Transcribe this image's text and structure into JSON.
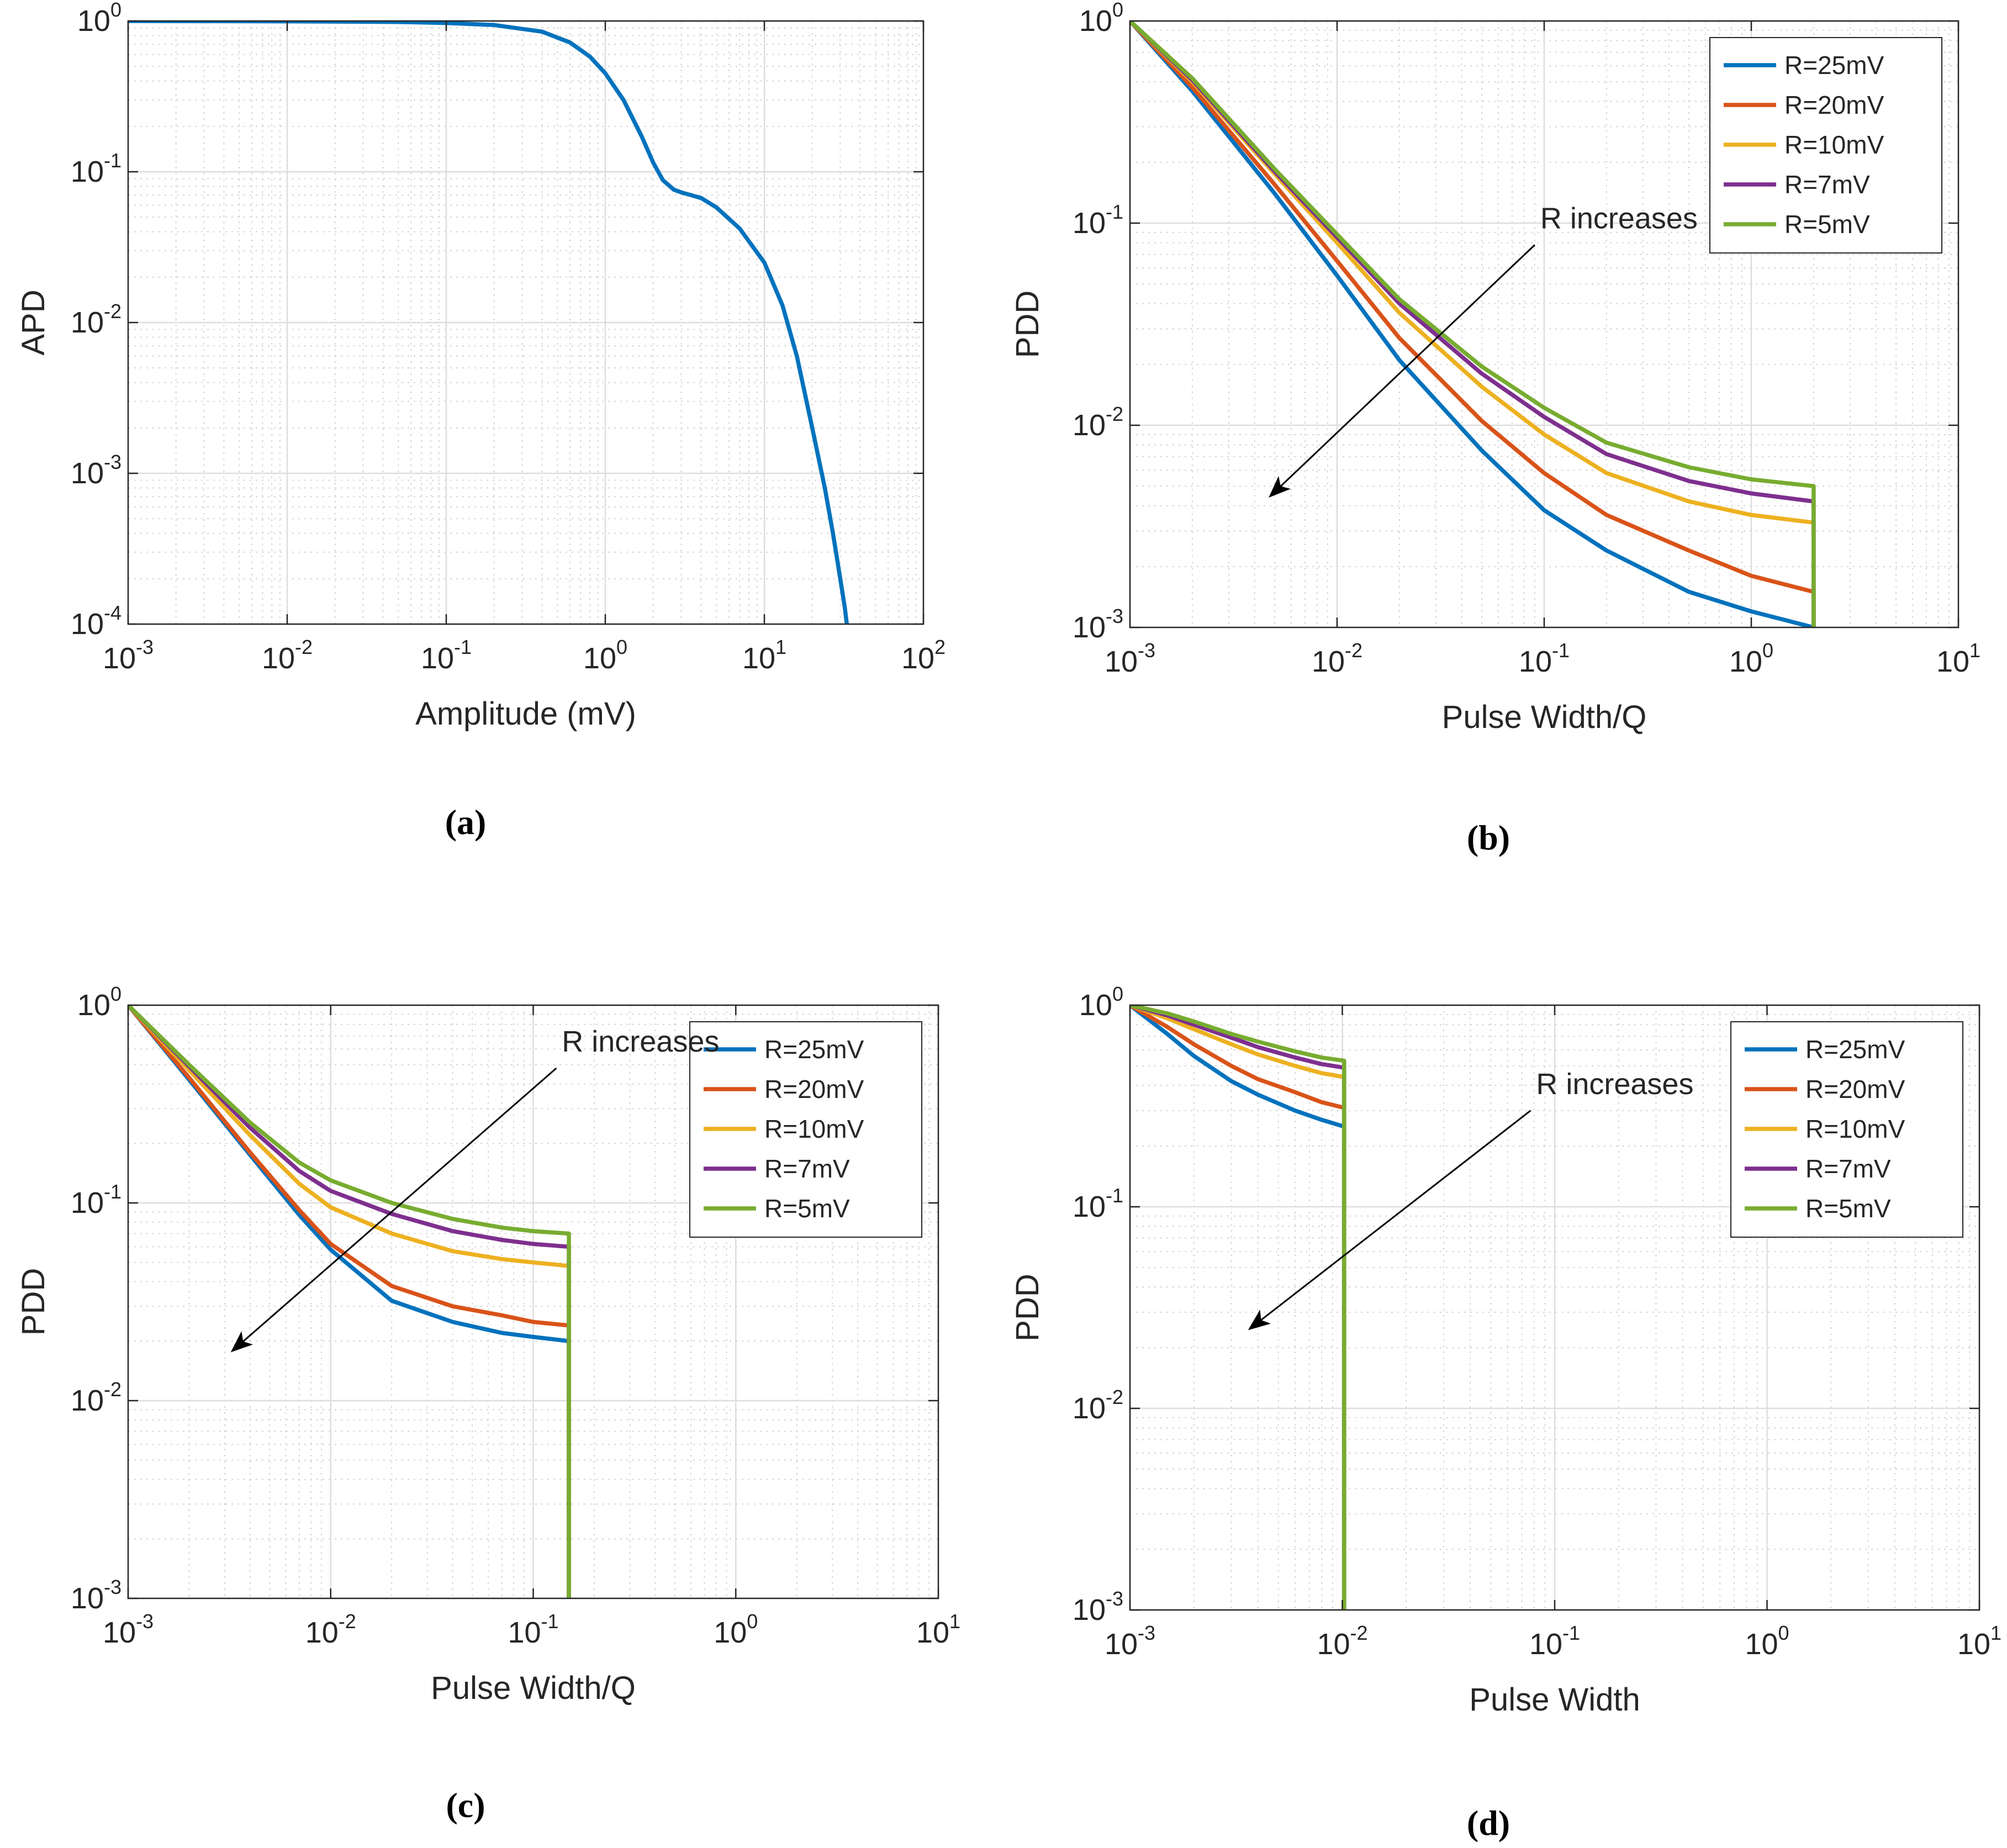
{
  "chart_data": [
    {
      "id": "a",
      "caption": "(a)",
      "type": "line",
      "scale": {
        "x": "log",
        "y": "log"
      },
      "xlabel": "Amplitude (mV)",
      "ylabel": "APD",
      "xlim": [
        0.001,
        100
      ],
      "ylim": [
        0.0001,
        1
      ],
      "xticks": [
        {
          "base": "10",
          "exp": "-3"
        },
        {
          "base": "10",
          "exp": "-2"
        },
        {
          "base": "10",
          "exp": "-1"
        },
        {
          "base": "10",
          "exp": "0"
        },
        {
          "base": "10",
          "exp": "1"
        },
        {
          "base": "10",
          "exp": "2"
        }
      ],
      "yticks": [
        {
          "base": "10",
          "exp": "-4"
        },
        {
          "base": "10",
          "exp": "-3"
        },
        {
          "base": "10",
          "exp": "-2"
        },
        {
          "base": "10",
          "exp": "-1"
        },
        {
          "base": "10",
          "exp": "0"
        }
      ],
      "grid": true,
      "series": [
        {
          "name": "APD",
          "color": "#0072BD",
          "x": [
            0.001,
            0.01,
            0.05,
            0.1,
            0.2,
            0.4,
            0.6,
            0.8,
            1,
            1.3,
            1.7,
            2,
            2.3,
            2.7,
            3,
            4,
            5,
            7,
            10,
            13,
            16,
            20,
            24,
            27,
            30,
            32,
            33
          ],
          "y": [
            1.0,
            0.995,
            0.985,
            0.97,
            0.94,
            0.85,
            0.72,
            0.58,
            0.45,
            0.3,
            0.17,
            0.115,
            0.088,
            0.076,
            0.073,
            0.067,
            0.058,
            0.042,
            0.025,
            0.013,
            0.006,
            0.002,
            0.0008,
            0.0004,
            0.0002,
            0.00013,
            0.0001
          ]
        }
      ]
    },
    {
      "id": "b",
      "caption": "(b)",
      "type": "line",
      "scale": {
        "x": "log",
        "y": "log"
      },
      "xlabel": "Pulse Width/Q",
      "ylabel": "PDD",
      "xlim": [
        0.001,
        10
      ],
      "ylim": [
        0.001,
        1
      ],
      "xticks": [
        {
          "base": "10",
          "exp": "-3"
        },
        {
          "base": "10",
          "exp": "-2"
        },
        {
          "base": "10",
          "exp": "-1"
        },
        {
          "base": "10",
          "exp": "0"
        },
        {
          "base": "10",
          "exp": "1"
        }
      ],
      "yticks": [
        {
          "base": "10",
          "exp": "-3"
        },
        {
          "base": "10",
          "exp": "-2"
        },
        {
          "base": "10",
          "exp": "-1"
        },
        {
          "base": "10",
          "exp": "0"
        }
      ],
      "grid": true,
      "legend": {
        "position": "top-right"
      },
      "annotation": {
        "text": "R increases",
        "arrow_from": [
          0.09,
          0.078
        ],
        "arrow_to": [
          0.0048,
          0.0045
        ]
      },
      "series": [
        {
          "name": "R=25mV",
          "color": "#0072BD",
          "x": [
            0.001,
            0.002,
            0.005,
            0.01,
            0.02,
            0.05,
            0.1,
            0.2,
            0.5,
            1,
            2,
            2
          ],
          "y": [
            1,
            0.45,
            0.14,
            0.055,
            0.021,
            0.0075,
            0.0038,
            0.0024,
            0.0015,
            0.0012,
            0.001,
            0.001
          ]
        },
        {
          "name": "R=20mV",
          "color": "#D95319",
          "x": [
            0.001,
            0.002,
            0.005,
            0.01,
            0.02,
            0.05,
            0.1,
            0.2,
            0.5,
            1,
            2,
            2
          ],
          "y": [
            1,
            0.47,
            0.155,
            0.065,
            0.027,
            0.0105,
            0.0058,
            0.0036,
            0.0024,
            0.0018,
            0.0015,
            0.001
          ]
        },
        {
          "name": "R=10mV",
          "color": "#EDB120",
          "x": [
            0.001,
            0.002,
            0.005,
            0.01,
            0.02,
            0.05,
            0.1,
            0.2,
            0.5,
            1,
            2,
            2
          ],
          "y": [
            1,
            0.5,
            0.175,
            0.08,
            0.036,
            0.0155,
            0.009,
            0.0058,
            0.0042,
            0.0036,
            0.0033,
            0.001
          ]
        },
        {
          "name": "R=7mV",
          "color": "#7E2F8E",
          "x": [
            0.001,
            0.002,
            0.005,
            0.01,
            0.02,
            0.05,
            0.1,
            0.2,
            0.5,
            1,
            2,
            2
          ],
          "y": [
            1,
            0.51,
            0.18,
            0.085,
            0.04,
            0.018,
            0.011,
            0.0072,
            0.0053,
            0.0046,
            0.0042,
            0.001
          ]
        },
        {
          "name": "R=5mV",
          "color": "#77AC30",
          "x": [
            0.001,
            0.002,
            0.005,
            0.01,
            0.02,
            0.05,
            0.1,
            0.2,
            0.5,
            1,
            2,
            2
          ],
          "y": [
            1,
            0.52,
            0.185,
            0.088,
            0.042,
            0.0195,
            0.0122,
            0.0082,
            0.0062,
            0.0054,
            0.005,
            0.001
          ]
        }
      ]
    },
    {
      "id": "c",
      "caption": "(c)",
      "type": "line",
      "scale": {
        "x": "log",
        "y": "log"
      },
      "xlabel": "Pulse Width/Q",
      "ylabel": "PDD",
      "xlim": [
        0.001,
        10
      ],
      "ylim": [
        0.001,
        1
      ],
      "xticks": [
        {
          "base": "10",
          "exp": "-3"
        },
        {
          "base": "10",
          "exp": "-2"
        },
        {
          "base": "10",
          "exp": "-1"
        },
        {
          "base": "10",
          "exp": "0"
        },
        {
          "base": "10",
          "exp": "1"
        }
      ],
      "yticks": [
        {
          "base": "10",
          "exp": "-3"
        },
        {
          "base": "10",
          "exp": "-2"
        },
        {
          "base": "10",
          "exp": "-1"
        },
        {
          "base": "10",
          "exp": "0"
        }
      ],
      "grid": true,
      "legend": {
        "position": "top-right"
      },
      "annotation": {
        "text": "R increases",
        "arrow_from": [
          0.13,
          0.48
        ],
        "arrow_to": [
          0.0033,
          0.018
        ]
      },
      "series": [
        {
          "name": "R=25mV",
          "color": "#0072BD",
          "x": [
            0.001,
            0.002,
            0.004,
            0.007,
            0.01,
            0.02,
            0.04,
            0.07,
            0.1,
            0.15,
            0.15
          ],
          "y": [
            1,
            0.42,
            0.175,
            0.087,
            0.058,
            0.032,
            0.025,
            0.022,
            0.021,
            0.02,
            0.001
          ]
        },
        {
          "name": "R=20mV",
          "color": "#D95319",
          "x": [
            0.001,
            0.002,
            0.004,
            0.007,
            0.01,
            0.02,
            0.04,
            0.07,
            0.1,
            0.15,
            0.15
          ],
          "y": [
            1,
            0.43,
            0.18,
            0.092,
            0.062,
            0.038,
            0.03,
            0.027,
            0.025,
            0.024,
            0.001
          ]
        },
        {
          "name": "R=10mV",
          "color": "#EDB120",
          "x": [
            0.001,
            0.002,
            0.004,
            0.007,
            0.01,
            0.02,
            0.04,
            0.07,
            0.1,
            0.15,
            0.15
          ],
          "y": [
            1,
            0.47,
            0.22,
            0.125,
            0.095,
            0.07,
            0.057,
            0.052,
            0.05,
            0.048,
            0.001
          ]
        },
        {
          "name": "R=7mV",
          "color": "#7E2F8E",
          "x": [
            0.001,
            0.002,
            0.004,
            0.007,
            0.01,
            0.02,
            0.04,
            0.07,
            0.1,
            0.15,
            0.15
          ],
          "y": [
            1,
            0.49,
            0.24,
            0.145,
            0.115,
            0.088,
            0.072,
            0.065,
            0.062,
            0.06,
            0.001
          ]
        },
        {
          "name": "R=5mV",
          "color": "#77AC30",
          "x": [
            0.001,
            0.002,
            0.004,
            0.007,
            0.01,
            0.02,
            0.04,
            0.07,
            0.1,
            0.15,
            0.15
          ],
          "y": [
            1,
            0.5,
            0.255,
            0.16,
            0.13,
            0.1,
            0.083,
            0.075,
            0.072,
            0.07,
            0.001
          ]
        }
      ]
    },
    {
      "id": "d",
      "caption": "(d)",
      "type": "line",
      "scale": {
        "x": "log",
        "y": "log"
      },
      "xlabel": "Pulse Width",
      "ylabel": "PDD",
      "xlim": [
        0.001,
        10
      ],
      "ylim": [
        0.001,
        1
      ],
      "xticks": [
        {
          "base": "10",
          "exp": "-3"
        },
        {
          "base": "10",
          "exp": "-2"
        },
        {
          "base": "10",
          "exp": "-1"
        },
        {
          "base": "10",
          "exp": "0"
        },
        {
          "base": "10",
          "exp": "1"
        }
      ],
      "yticks": [
        {
          "base": "10",
          "exp": "-3"
        },
        {
          "base": "10",
          "exp": "-2"
        },
        {
          "base": "10",
          "exp": "-1"
        },
        {
          "base": "10",
          "exp": "0"
        }
      ],
      "grid": true,
      "legend": {
        "position": "top-right"
      },
      "annotation": {
        "text": "R increases",
        "arrow_from": [
          0.077,
          0.3
        ],
        "arrow_to": [
          0.0037,
          0.025
        ]
      },
      "series": [
        {
          "name": "R=25mV",
          "color": "#0072BD",
          "x": [
            0.001,
            0.0015,
            0.002,
            0.003,
            0.004,
            0.006,
            0.008,
            0.0102,
            0.0102
          ],
          "y": [
            1,
            0.72,
            0.56,
            0.42,
            0.36,
            0.3,
            0.27,
            0.25,
            0.001
          ]
        },
        {
          "name": "R=20mV",
          "color": "#D95319",
          "x": [
            0.001,
            0.0015,
            0.002,
            0.003,
            0.004,
            0.006,
            0.008,
            0.0102,
            0.0102
          ],
          "y": [
            1,
            0.78,
            0.64,
            0.5,
            0.43,
            0.37,
            0.33,
            0.31,
            0.001
          ]
        },
        {
          "name": "R=10mV",
          "color": "#EDB120",
          "x": [
            0.001,
            0.0015,
            0.002,
            0.003,
            0.004,
            0.006,
            0.008,
            0.0102,
            0.0102
          ],
          "y": [
            1,
            0.86,
            0.76,
            0.64,
            0.57,
            0.5,
            0.46,
            0.44,
            0.001
          ]
        },
        {
          "name": "R=7mV",
          "color": "#7E2F8E",
          "x": [
            0.001,
            0.0015,
            0.002,
            0.003,
            0.004,
            0.006,
            0.008,
            0.0102,
            0.0102
          ],
          "y": [
            1,
            0.89,
            0.8,
            0.69,
            0.62,
            0.55,
            0.51,
            0.49,
            0.001
          ]
        },
        {
          "name": "R=5mV",
          "color": "#77AC30",
          "x": [
            0.001,
            0.0015,
            0.002,
            0.003,
            0.004,
            0.006,
            0.008,
            0.0102,
            0.0102
          ],
          "y": [
            1,
            0.91,
            0.83,
            0.72,
            0.66,
            0.59,
            0.55,
            0.53,
            0.001
          ]
        }
      ]
    }
  ]
}
